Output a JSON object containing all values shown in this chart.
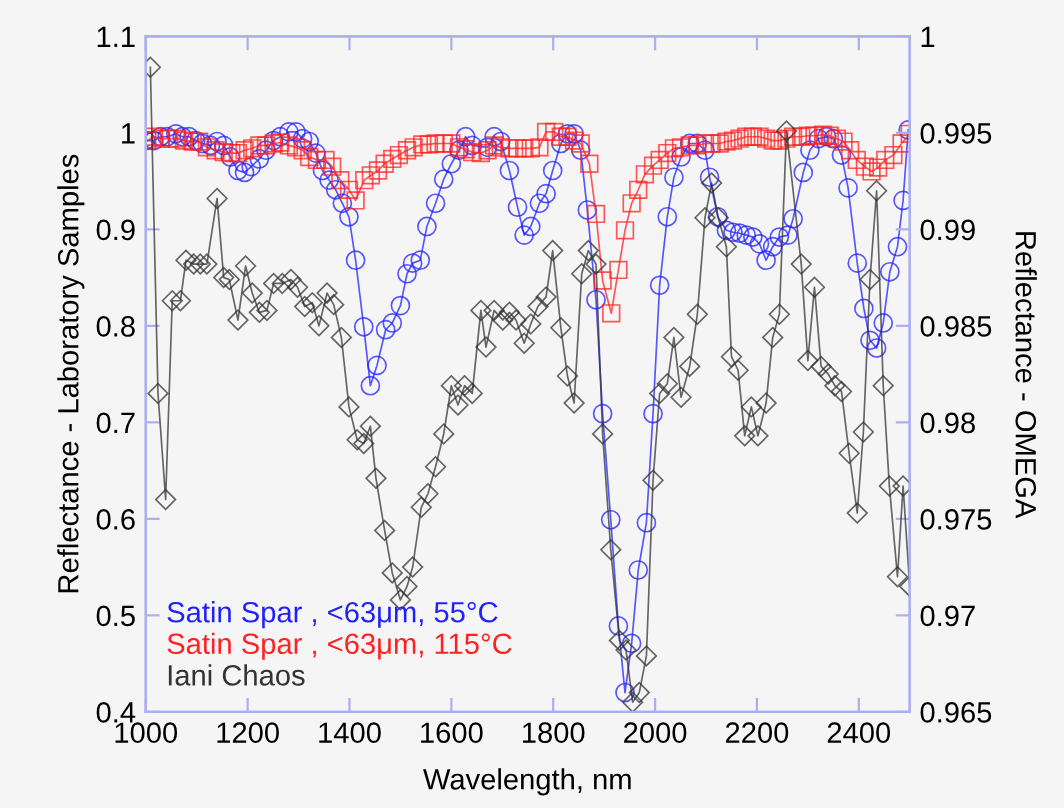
{
  "chart_data": {
    "type": "line",
    "xlabel": "Wavelength, nm",
    "ylabel": "Reflectance - Laboratory Samples",
    "y2label": "Reflectance - OMEGA",
    "xlim": [
      1000,
      2500
    ],
    "xticks": [
      1000,
      1200,
      1400,
      1600,
      1800,
      2000,
      2200,
      2400
    ],
    "ylim": [
      0.4,
      1.1
    ],
    "yticks": [
      0.4,
      0.5,
      0.6,
      0.7,
      0.8,
      0.9,
      1,
      1.1
    ],
    "y2lim": [
      0.965,
      1
    ],
    "y2ticks": [
      0.965,
      0.97,
      0.975,
      0.98,
      0.985,
      0.99,
      0.995,
      1
    ],
    "grid": false,
    "legend": "bottom left",
    "line_style": "solid",
    "series": [
      {
        "name": "Satin Spar , <63μm, 55°C",
        "color": "#2020ff",
        "marker": "circle",
        "x": [
          1000,
          1016,
          1029,
          1042,
          1059,
          1072,
          1085,
          1098,
          1111,
          1127,
          1140,
          1153,
          1166,
          1181,
          1194,
          1207,
          1223,
          1236,
          1251,
          1264,
          1281,
          1295,
          1308,
          1321,
          1334,
          1347,
          1360,
          1373,
          1386,
          1399,
          1412,
          1428,
          1441,
          1454,
          1471,
          1484,
          1500,
          1513,
          1524,
          1539,
          1552,
          1569,
          1585,
          1600,
          1615,
          1628,
          1641,
          1671,
          1684,
          1697,
          1714,
          1730,
          1743,
          1756,
          1773,
          1786,
          1799,
          1815,
          1828,
          1841,
          1854,
          1867,
          1884,
          1897,
          1913,
          1928,
          1941,
          1954,
          1967,
          1983,
          1996,
          2009,
          2024,
          2037,
          2051,
          2068,
          2083,
          2098,
          2107,
          2123,
          2140,
          2153,
          2166,
          2179,
          2192,
          2205,
          2218,
          2231,
          2244,
          2261,
          2271,
          2291,
          2304,
          2321,
          2337,
          2350,
          2366,
          2379,
          2397,
          2410,
          2422,
          2435,
          2448,
          2461,
          2476,
          2487,
          2497
        ],
        "values": [
          0.992,
          0.992,
          0.996,
          0.996,
          0.999,
          0.996,
          0.996,
          0.992,
          0.989,
          0.987,
          0.991,
          0.987,
          0.975,
          0.961,
          0.959,
          0.965,
          0.973,
          0.982,
          0.992,
          0.996,
          1.001,
          1.001,
          0.994,
          0.991,
          0.979,
          0.961,
          0.951,
          0.941,
          0.927,
          0.913,
          0.868,
          0.799,
          0.738,
          0.759,
          0.796,
          0.803,
          0.821,
          0.854,
          0.865,
          0.868,
          0.903,
          0.927,
          0.952,
          0.968,
          0.982,
          0.996,
          0.987,
          0.985,
          0.996,
          0.991,
          0.961,
          0.923,
          0.894,
          0.903,
          0.927,
          0.937,
          0.961,
          0.989,
          0.999,
          0.999,
          0.982,
          0.92,
          0.827,
          0.709,
          0.599,
          0.489,
          0.42,
          0.471,
          0.547,
          0.596,
          0.709,
          0.842,
          0.913,
          0.954,
          0.975,
          0.989,
          0.989,
          0.982,
          0.954,
          0.913,
          0.899,
          0.897,
          0.896,
          0.894,
          0.892,
          0.885,
          0.868,
          0.882,
          0.892,
          0.894,
          0.911,
          0.959,
          0.982,
          0.994,
          0.996,
          0.994,
          0.977,
          0.943,
          0.865,
          0.818,
          0.785,
          0.777,
          0.803,
          0.856,
          0.882,
          0.93,
          1.003
        ]
      },
      {
        "name": "Satin Spar , <63μm, 115°C",
        "color": "#ff2020",
        "marker": "square",
        "x": [
          1003,
          1016,
          1029,
          1046,
          1062,
          1075,
          1092,
          1105,
          1120,
          1137,
          1153,
          1168,
          1181,
          1194,
          1209,
          1223,
          1236,
          1251,
          1264,
          1281,
          1295,
          1308,
          1321,
          1336,
          1353,
          1366,
          1382,
          1399,
          1412,
          1429,
          1442,
          1456,
          1469,
          1484,
          1497,
          1513,
          1526,
          1543,
          1556,
          1569,
          1585,
          1600,
          1615,
          1628,
          1641,
          1658,
          1671,
          1684,
          1697,
          1714,
          1730,
          1743,
          1756,
          1773,
          1786,
          1802,
          1815,
          1828,
          1841,
          1854,
          1871,
          1884,
          1897,
          1914,
          1928,
          1941,
          1954,
          1967,
          1980,
          1996,
          2009,
          2024,
          2037,
          2051,
          2068,
          2083,
          2098,
          2111,
          2127,
          2140,
          2153,
          2166,
          2179,
          2192,
          2205,
          2218,
          2231,
          2244,
          2258,
          2271,
          2287,
          2300,
          2313,
          2330,
          2343,
          2357,
          2370,
          2383,
          2396,
          2412,
          2425,
          2438,
          2452,
          2468,
          2484,
          2500
        ],
        "values": [
          0.992,
          0.996,
          0.994,
          0.994,
          0.994,
          0.992,
          0.991,
          0.991,
          0.985,
          0.982,
          0.98,
          0.979,
          0.979,
          0.982,
          0.984,
          0.987,
          0.987,
          0.989,
          0.99,
          0.987,
          0.985,
          0.982,
          0.975,
          0.972,
          0.972,
          0.965,
          0.951,
          0.941,
          0.93,
          0.951,
          0.956,
          0.961,
          0.968,
          0.973,
          0.977,
          0.982,
          0.985,
          0.988,
          0.988,
          0.989,
          0.989,
          0.989,
          0.985,
          0.983,
          0.98,
          0.979,
          0.982,
          0.987,
          0.985,
          0.984,
          0.984,
          0.984,
          0.984,
          0.985,
          1.001,
          1.001,
          0.996,
          0.996,
          0.992,
          0.989,
          0.968,
          0.916,
          0.847,
          0.813,
          0.858,
          0.899,
          0.927,
          0.941,
          0.957,
          0.966,
          0.972,
          0.979,
          0.984,
          0.985,
          0.987,
          0.987,
          0.989,
          0.989,
          0.989,
          0.991,
          0.992,
          0.994,
          0.996,
          0.996,
          0.996,
          0.994,
          0.992,
          0.992,
          0.994,
          0.996,
          0.996,
          0.997,
          0.997,
          0.998,
          0.997,
          0.994,
          0.991,
          0.982,
          0.972,
          0.965,
          0.96,
          0.964,
          0.972,
          0.977,
          0.989,
          0.999
        ]
      },
      {
        "name": "Iani Chaos",
        "color": "#333333",
        "marker": "diamond",
        "axis": "y2",
        "x": [
          1009,
          1024,
          1039,
          1052,
          1068,
          1079,
          1094,
          1107,
          1120,
          1140,
          1153,
          1164,
          1181,
          1196,
          1209,
          1223,
          1238,
          1251,
          1268,
          1285,
          1298,
          1312,
          1327,
          1340,
          1356,
          1369,
          1384,
          1399,
          1415,
          1428,
          1441,
          1452,
          1469,
          1484,
          1500,
          1513,
          1524,
          1541,
          1554,
          1569,
          1585,
          1600,
          1613,
          1626,
          1641,
          1658,
          1668,
          1684,
          1701,
          1714,
          1727,
          1743,
          1756,
          1770,
          1786,
          1799,
          1815,
          1828,
          1841,
          1856,
          1869,
          1884,
          1897,
          1913,
          1930,
          1943,
          1956,
          1969,
          1983,
          1996,
          2009,
          2024,
          2037,
          2051,
          2068,
          2083,
          2098,
          2111,
          2124,
          2140,
          2150,
          2163,
          2176,
          2189,
          2202,
          2218,
          2231,
          2244,
          2258,
          2287,
          2300,
          2313,
          2326,
          2340,
          2353,
          2366,
          2381,
          2397,
          2409,
          2422,
          2435,
          2448,
          2460,
          2476,
          2487,
          2500
        ],
        "values": [
          0.9984,
          0.9815,
          0.976,
          0.9863,
          0.9863,
          0.9884,
          0.9882,
          0.9882,
          0.9882,
          0.9916,
          0.9875,
          0.9874,
          0.9853,
          0.9881,
          0.9867,
          0.9857,
          0.9858,
          0.9872,
          0.9872,
          0.9874,
          0.987,
          0.986,
          0.9862,
          0.985,
          0.9867,
          0.9861,
          0.9844,
          0.9808,
          0.9791,
          0.9789,
          0.9798,
          0.9771,
          0.9744,
          0.9722,
          0.9708,
          0.9715,
          0.9725,
          0.9756,
          0.9763,
          0.9777,
          0.9794,
          0.9819,
          0.9809,
          0.9819,
          0.9815,
          0.9858,
          0.9839,
          0.9858,
          0.9853,
          0.9857,
          0.9853,
          0.9841,
          0.9851,
          0.986,
          0.9865,
          0.9889,
          0.9849,
          0.9824,
          0.981,
          0.9877,
          0.9889,
          0.9882,
          0.9794,
          0.9734,
          0.9687,
          0.9682,
          0.9655,
          0.966,
          0.9679,
          0.977,
          0.9815,
          0.982,
          0.9844,
          0.9813,
          0.9829,
          0.9856,
          0.9906,
          0.9924,
          0.9906,
          0.9891,
          0.9834,
          0.9827,
          0.9793,
          0.9808,
          0.9793,
          0.981,
          0.9844,
          0.9856,
          0.9951,
          0.9882,
          0.9832,
          0.987,
          0.9829,
          0.9825,
          0.9819,
          0.9816,
          0.9784,
          0.9753,
          0.9795,
          0.9874,
          0.992,
          0.9819,
          0.9767,
          0.972,
          0.9767,
          0.9715
        ]
      }
    ]
  }
}
